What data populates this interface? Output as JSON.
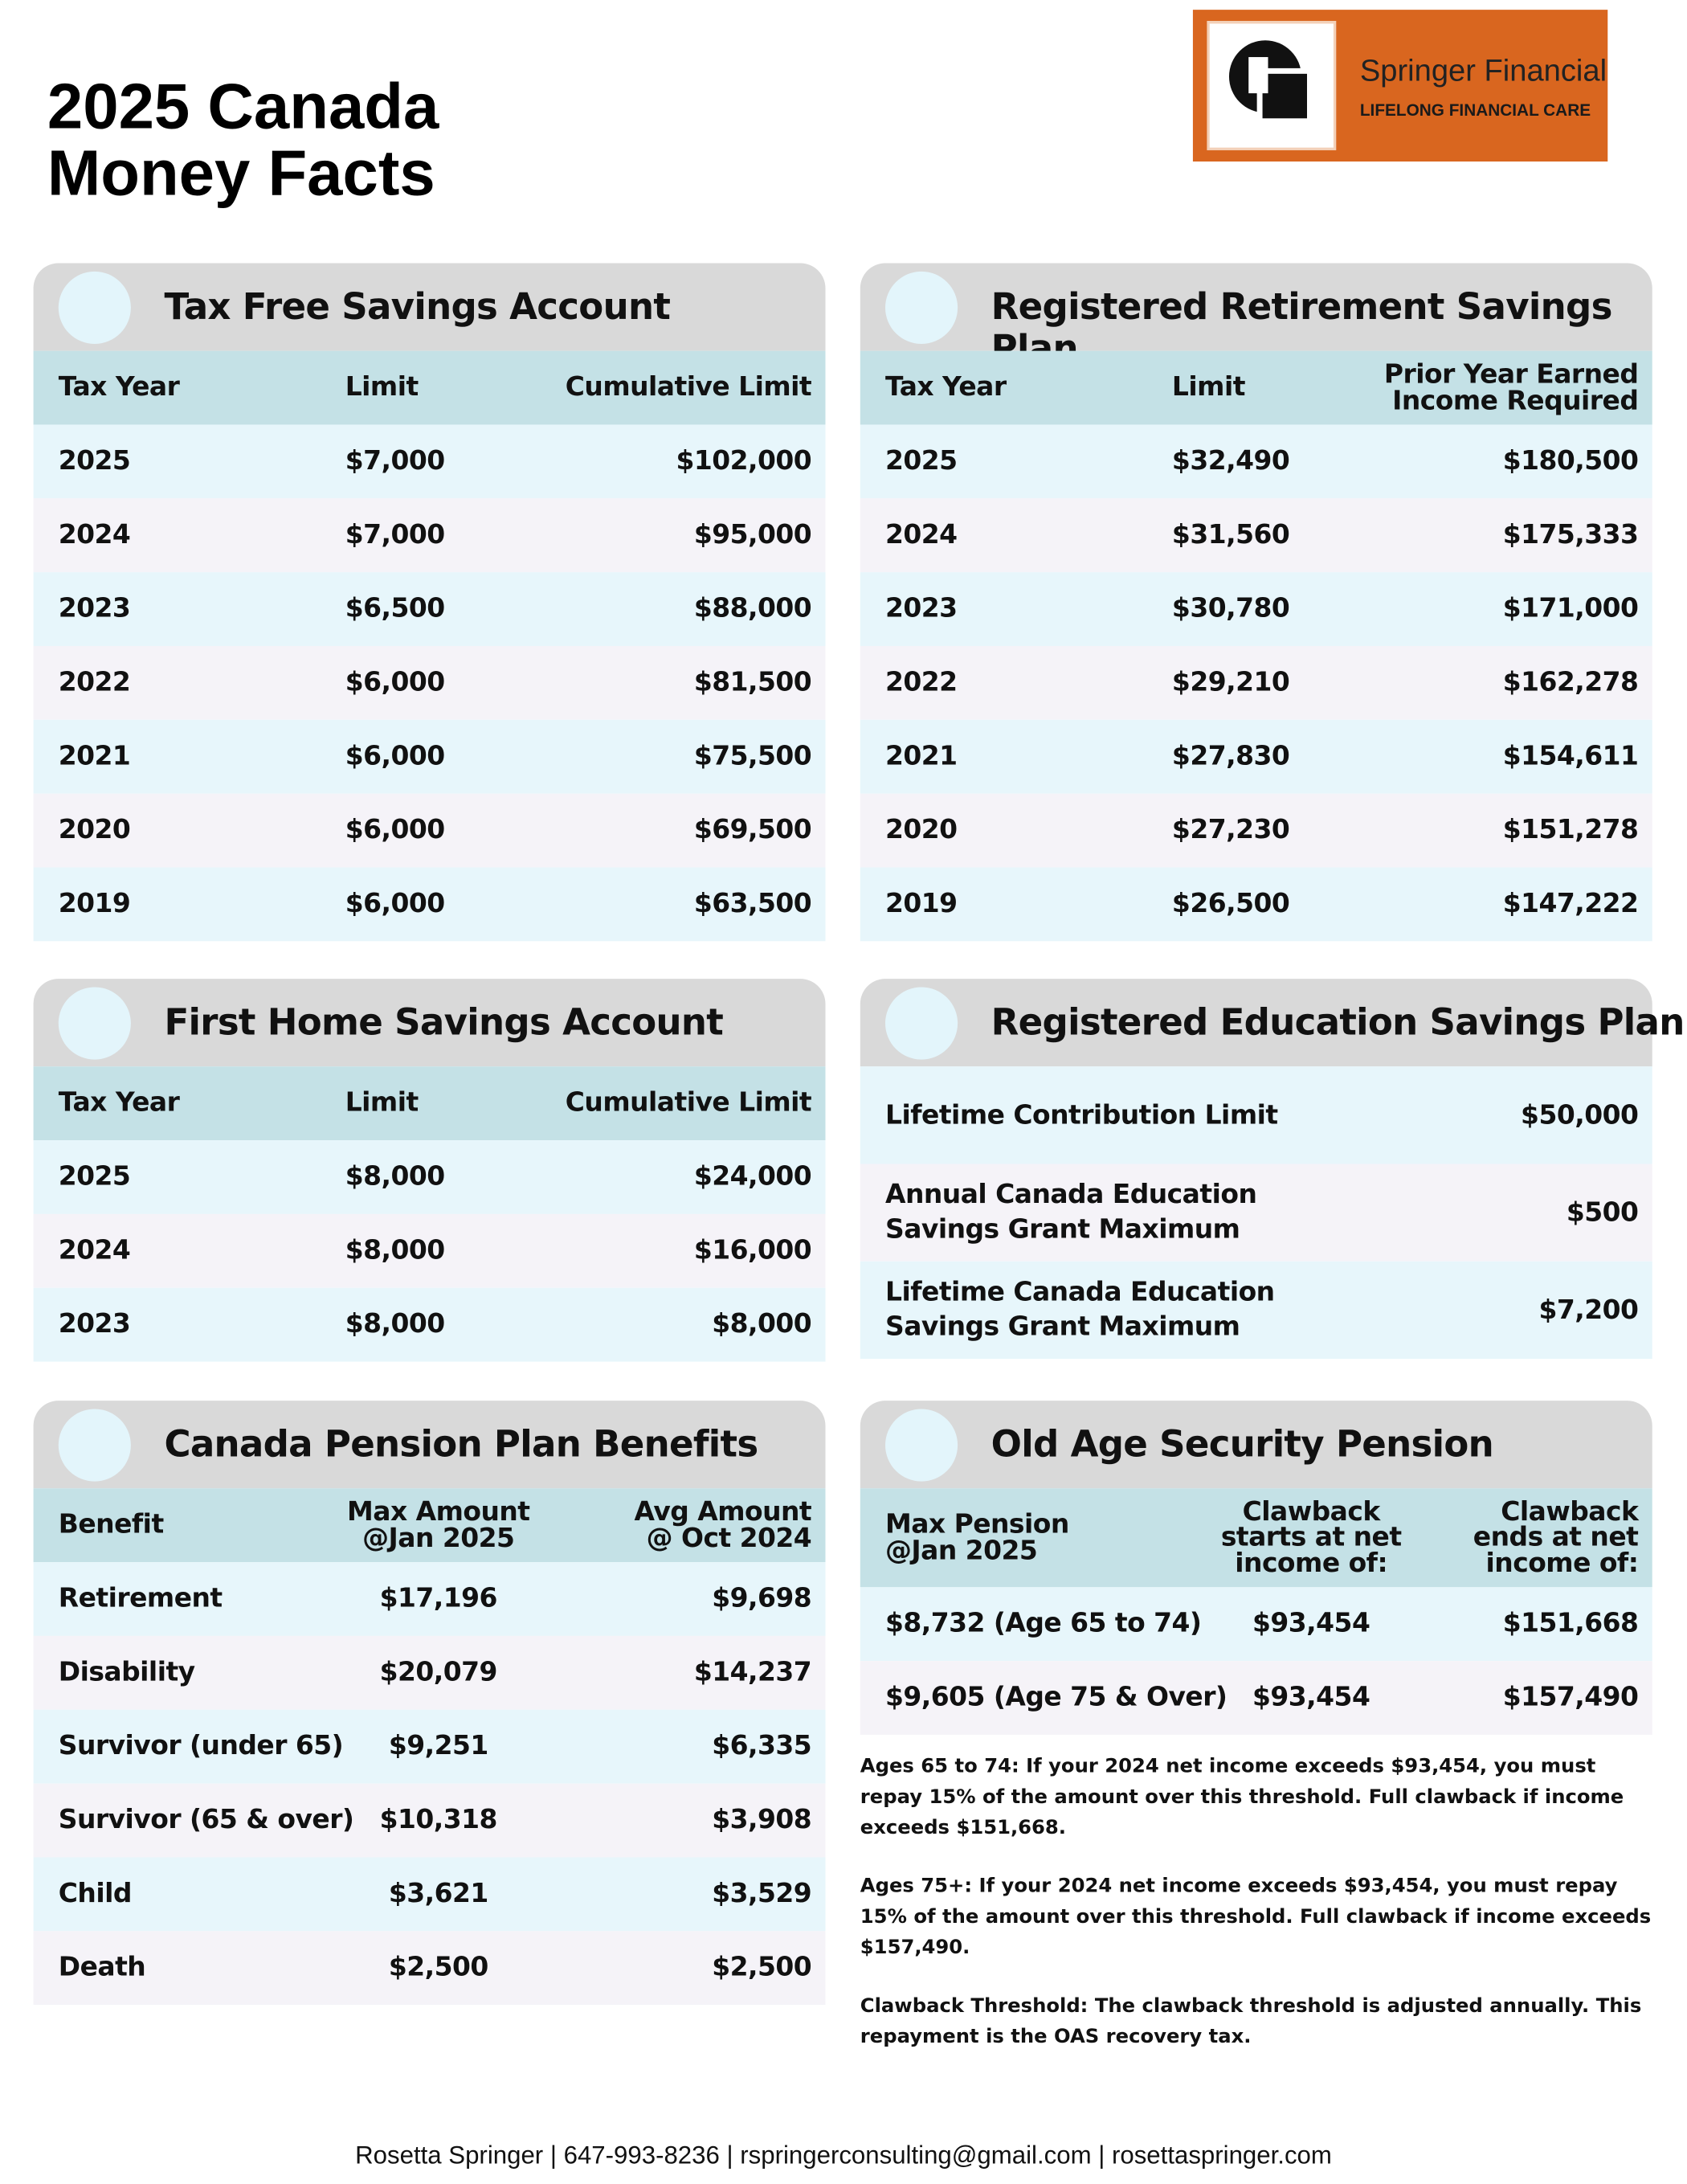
{
  "header": {
    "title_lines": [
      "2025 Canada",
      "Money Facts"
    ],
    "logo": {
      "name": "Springer Financial",
      "tagline": "LIFELONG FINANCIAL CARE"
    }
  },
  "sections": [
    {
      "title": "Tax Free Savings Account",
      "columns": [
        "Tax Year",
        "Limit",
        "Cumulative Limit"
      ],
      "rows": [
        [
          "2025",
          "$7,000",
          "$102,000"
        ],
        [
          "2024",
          "$7,000",
          "$95,000"
        ],
        [
          "2023",
          "$6,500",
          "$88,000"
        ],
        [
          "2022",
          "$6,000",
          "$81,500"
        ],
        [
          "2021",
          "$6,000",
          "$75,500"
        ],
        [
          "2020",
          "$6,000",
          "$69,500"
        ],
        [
          "2019",
          "$6,000",
          "$63,500"
        ]
      ]
    },
    {
      "title": "Registered Retirement Savings Plan",
      "columns": [
        "Tax Year",
        "Limit",
        "Prior Year Earned\nIncome Required"
      ],
      "rows": [
        [
          "2025",
          "$32,490",
          "$180,500"
        ],
        [
          "2024",
          "$31,560",
          "$175,333"
        ],
        [
          "2023",
          "$30,780",
          "$171,000"
        ],
        [
          "2022",
          "$29,210",
          "$162,278"
        ],
        [
          "2021",
          "$27,830",
          "$154,611"
        ],
        [
          "2020",
          "$27,230",
          "$151,278"
        ],
        [
          "2019",
          "$26,500",
          "$147,222"
        ]
      ]
    },
    {
      "title": "First Home Savings Account",
      "columns": [
        "Tax Year",
        "Limit",
        "Cumulative Limit"
      ],
      "rows": [
        [
          "2025",
          "$8,000",
          "$24,000"
        ],
        [
          "2024",
          "$8,000",
          "$16,000"
        ],
        [
          "2023",
          "$8,000",
          "$8,000"
        ]
      ]
    },
    {
      "title": "Registered Education Savings Plan",
      "rows": [
        [
          "Lifetime Contribution Limit",
          "$50,000"
        ],
        [
          "Annual Canada Education\nSavings Grant Maximum",
          "$500"
        ],
        [
          "Lifetime Canada Education\nSavings Grant Maximum",
          "$7,200"
        ]
      ]
    },
    {
      "title": "Canada Pension Plan Benefits",
      "columns": [
        "Benefit",
        "Max Amount\n@Jan 2025",
        "Avg Amount\n@ Oct 2024"
      ],
      "rows": [
        [
          "Retirement",
          "$17,196",
          "$9,698"
        ],
        [
          "Disability",
          "$20,079",
          "$14,237"
        ],
        [
          "Survivor (under 65)",
          "$9,251",
          "$6,335"
        ],
        [
          "Survivor (65 & over)",
          "$10,318",
          "$3,908"
        ],
        [
          "Child",
          "$3,621",
          "$3,529"
        ],
        [
          "Death",
          "$2,500",
          "$2,500"
        ]
      ]
    },
    {
      "title": "Old Age Security Pension",
      "columns": [
        "Max Pension\n@Jan 2025",
        "Clawback\nstarts at net\nincome of:",
        "Clawback\nends at net\nincome of:"
      ],
      "rows": [
        [
          "$8,732 (Age 65 to 74)",
          "$93,454",
          "$151,668"
        ],
        [
          "$9,605 (Age 75 & Over)",
          "$93,454",
          "$157,490"
        ]
      ],
      "notes": [
        "Ages 65 to 74: If your 2024 net income exceeds $93,454, you must repay 15% of the amount over this threshold. Full clawback if income exceeds $151,668.",
        "Ages 75+: If your 2024 net income exceeds $93,454, you must repay 15% of the amount over this threshold. Full clawback if income exceeds $157,490.",
        "Clawback Threshold: The clawback threshold is adjusted annually. This repayment is the OAS recovery tax."
      ]
    }
  ],
  "footer": "Rosetta Springer | 647-993-8236 | rspringerconsulting@gmail.com | rosettaspringer.com"
}
